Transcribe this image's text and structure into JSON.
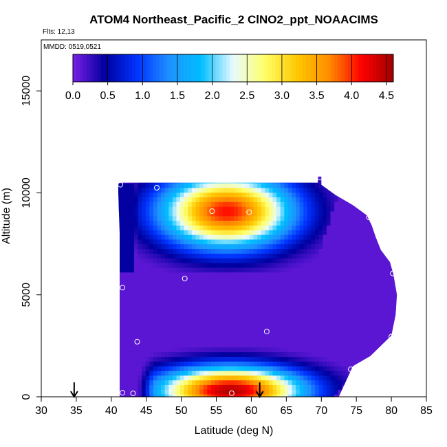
{
  "chart_data": {
    "type": "heatmap",
    "title": "ATOM4 Northeast_Pacific_2 ClNO2_ppt_NOAACIMS",
    "subtitle_flights": "Flts: 12,13",
    "subtitle_dates": "MMDD: 0519,0521",
    "xlabel": "Latitude (deg N)",
    "ylabel": "Altitude (m)",
    "xlim": [
      30,
      85
    ],
    "ylim": [
      0,
      17500
    ],
    "xticks": [
      "30",
      "35",
      "40",
      "45",
      "50",
      "55",
      "60",
      "65",
      "70",
      "75",
      "80",
      "85"
    ],
    "yticks": [
      "0",
      "5000",
      "10000",
      "15000"
    ],
    "colorbar": {
      "ticks": [
        "0.0",
        "0.5",
        "1.0",
        "1.5",
        "2.0",
        "2.5",
        "3.0",
        "3.5",
        "4.0",
        "4.5"
      ],
      "range": [
        0,
        4.6
      ],
      "colors": [
        "#7a1ee6",
        "#00009e",
        "#0033ff",
        "#1e90ff",
        "#00bfff",
        "#e8faff",
        "#ffff66",
        "#ffc800",
        "#ff8c00",
        "#ff0000",
        "#a00000"
      ]
    },
    "markers_latitude": [
      34.7,
      61.2
    ],
    "sample_points": [
      {
        "lat": 41.3,
        "alt": 10400
      },
      {
        "lat": 46.5,
        "alt": 10250
      },
      {
        "lat": 69.8,
        "alt": 10750
      },
      {
        "lat": 54.4,
        "alt": 9100
      },
      {
        "lat": 59.7,
        "alt": 9050
      },
      {
        "lat": 76.8,
        "alt": 8800
      },
      {
        "lat": 80.2,
        "alt": 6050
      },
      {
        "lat": 50.5,
        "alt": 5800
      },
      {
        "lat": 41.6,
        "alt": 5350
      },
      {
        "lat": 62.2,
        "alt": 3200
      },
      {
        "lat": 80.0,
        "alt": 2950
      },
      {
        "lat": 43.7,
        "alt": 2700
      },
      {
        "lat": 74.2,
        "alt": 1350
      },
      {
        "lat": 41.6,
        "alt": 200
      },
      {
        "lat": 43.1,
        "alt": 170
      },
      {
        "lat": 57.2,
        "alt": 180
      },
      {
        "lat": 73.6,
        "alt": 160
      }
    ],
    "upper_plume": {
      "lat_start": 41.5,
      "lat_end": 69.0,
      "alt_base": 6300,
      "alt_top": 10600,
      "core_lat": 56.5,
      "core_alt": 9100,
      "peak": 4.1
    },
    "lower_plume": {
      "lat_start": 43.5,
      "lat_end": 72.0,
      "alt_base": 0,
      "alt_top": 2800,
      "core_lat": 57.0,
      "core_alt": 300,
      "peak": 4.5
    }
  }
}
